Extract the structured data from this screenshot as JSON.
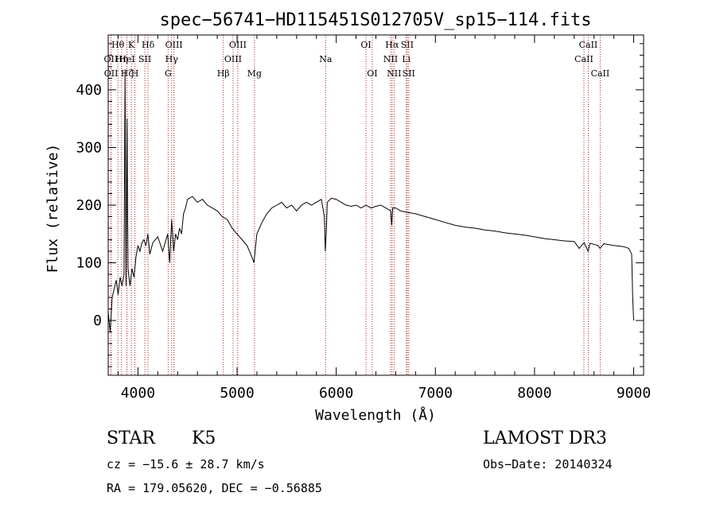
{
  "chart_data": {
    "type": "line",
    "title": "spec−56741−HD115451S012705V_sp15−114.fits",
    "xlabel": "Wavelength (Å)",
    "ylabel": "Flux (relative)",
    "xlim": [
      3700,
      9100
    ],
    "ylim": [
      -95,
      495
    ],
    "xticks": [
      4000,
      5000,
      6000,
      7000,
      8000,
      9000
    ],
    "yticks": [
      0,
      100,
      200,
      300,
      400
    ],
    "grid": false,
    "series": [
      {
        "x": [
          3700,
          3720,
          3740,
          3760,
          3780,
          3800,
          3820,
          3840,
          3860,
          3870,
          3880,
          3890,
          3900,
          3920,
          3940,
          3960,
          3980,
          4000,
          4020,
          4040,
          4060,
          4080,
          4100,
          4120,
          4150,
          4200,
          4250,
          4300,
          4320,
          4340,
          4360,
          4380,
          4400,
          4420,
          4440,
          4460,
          4480,
          4500,
          4550,
          4600,
          4650,
          4700,
          4750,
          4800,
          4850,
          4900,
          4950,
          5000,
          5050,
          5100,
          5150,
          5170,
          5180,
          5200,
          5250,
          5300,
          5350,
          5400,
          5450,
          5500,
          5550,
          5600,
          5650,
          5700,
          5750,
          5800,
          5850,
          5880,
          5890,
          5900,
          5910,
          5950,
          6000,
          6050,
          6100,
          6150,
          6200,
          6250,
          6300,
          6350,
          6400,
          6450,
          6500,
          6550,
          6560,
          6570,
          6600,
          6650,
          6700,
          6800,
          6900,
          7000,
          7100,
          7200,
          7300,
          7400,
          7500,
          7600,
          7700,
          7800,
          7900,
          8000,
          8100,
          8200,
          8300,
          8400,
          8450,
          8500,
          8540,
          8560,
          8600,
          8640,
          8660,
          8700,
          8800,
          8900,
          8950,
          8980,
          8990,
          9000
        ],
        "values": [
          15,
          -20,
          40,
          55,
          70,
          45,
          75,
          60,
          80,
          435,
          60,
          350,
          90,
          60,
          90,
          75,
          110,
          130,
          120,
          135,
          140,
          130,
          150,
          115,
          135,
          145,
          120,
          150,
          100,
          175,
          120,
          150,
          140,
          160,
          150,
          185,
          195,
          210,
          215,
          205,
          210,
          200,
          195,
          190,
          180,
          175,
          160,
          150,
          140,
          130,
          110,
          100,
          118,
          150,
          170,
          185,
          195,
          200,
          205,
          195,
          200,
          190,
          200,
          205,
          200,
          205,
          210,
          180,
          120,
          155,
          205,
          212,
          210,
          205,
          200,
          198,
          200,
          195,
          200,
          195,
          198,
          200,
          195,
          190,
          165,
          195,
          195,
          190,
          188,
          185,
          180,
          175,
          170,
          165,
          162,
          160,
          157,
          155,
          152,
          150,
          148,
          145,
          142,
          140,
          138,
          137,
          125,
          135,
          120,
          134,
          132,
          130,
          125,
          133,
          130,
          128,
          125,
          115,
          40,
          0
        ]
      }
    ],
    "line_markers": [
      {
        "label": "Hθ",
        "wavelength": 3798,
        "row": 1
      },
      {
        "label": "OII",
        "wavelength": 3727,
        "row": 2
      },
      {
        "label": "OII",
        "wavelength": 3729,
        "row": 3
      },
      {
        "label": "Hη",
        "wavelength": 3835,
        "row": 2
      },
      {
        "label": "Hζ",
        "wavelength": 3889,
        "row": 3
      },
      {
        "label": "K",
        "wavelength": 3934,
        "row": 1
      },
      {
        "label": "HeI",
        "wavelength": 3889,
        "row": 2
      },
      {
        "label": "H",
        "wavelength": 3969,
        "row": 3
      },
      {
        "label": "SII",
        "wavelength": 4070,
        "row": 2
      },
      {
        "label": "Hδ",
        "wavelength": 4102,
        "row": 1
      },
      {
        "label": "OIII",
        "wavelength": 4363,
        "row": 1
      },
      {
        "label": "Hγ",
        "wavelength": 4340,
        "row": 2
      },
      {
        "label": "G",
        "wavelength": 4305,
        "row": 3
      },
      {
        "label": "Hβ",
        "wavelength": 4861,
        "row": 3
      },
      {
        "label": "OIII",
        "wavelength": 5007,
        "row": 1
      },
      {
        "label": "OIII",
        "wavelength": 4959,
        "row": 2
      },
      {
        "label": "Mg",
        "wavelength": 5175,
        "row": 3
      },
      {
        "label": "Na",
        "wavelength": 5893,
        "row": 2
      },
      {
        "label": "OI",
        "wavelength": 6300,
        "row": 1
      },
      {
        "label": "OI",
        "wavelength": 6363,
        "row": 3
      },
      {
        "label": "Hα",
        "wavelength": 6563,
        "row": 1
      },
      {
        "label": "NII",
        "wavelength": 6548,
        "row": 2
      },
      {
        "label": "NII",
        "wavelength": 6583,
        "row": 3
      },
      {
        "label": "SII",
        "wavelength": 6716,
        "row": 1
      },
      {
        "label": "Li",
        "wavelength": 6707,
        "row": 2
      },
      {
        "label": "SII",
        "wavelength": 6731,
        "row": 3
      },
      {
        "label": "CaII",
        "wavelength": 8542,
        "row": 1
      },
      {
        "label": "CaII",
        "wavelength": 8498,
        "row": 2
      },
      {
        "label": "CaII",
        "wavelength": 8662,
        "row": 3
      }
    ]
  },
  "footer": {
    "object_class": "STAR",
    "subclass": "K5",
    "survey": "LAMOST DR3",
    "redshift": "cz = −15.6 ± 28.7 km/s",
    "obs_date": "Obs−Date: 20140324",
    "coords": "RA = 179.05620, DEC =  −0.56885"
  },
  "colors": {
    "spectrum": "#000000",
    "marker": "#b22222",
    "axes": "#000000"
  }
}
